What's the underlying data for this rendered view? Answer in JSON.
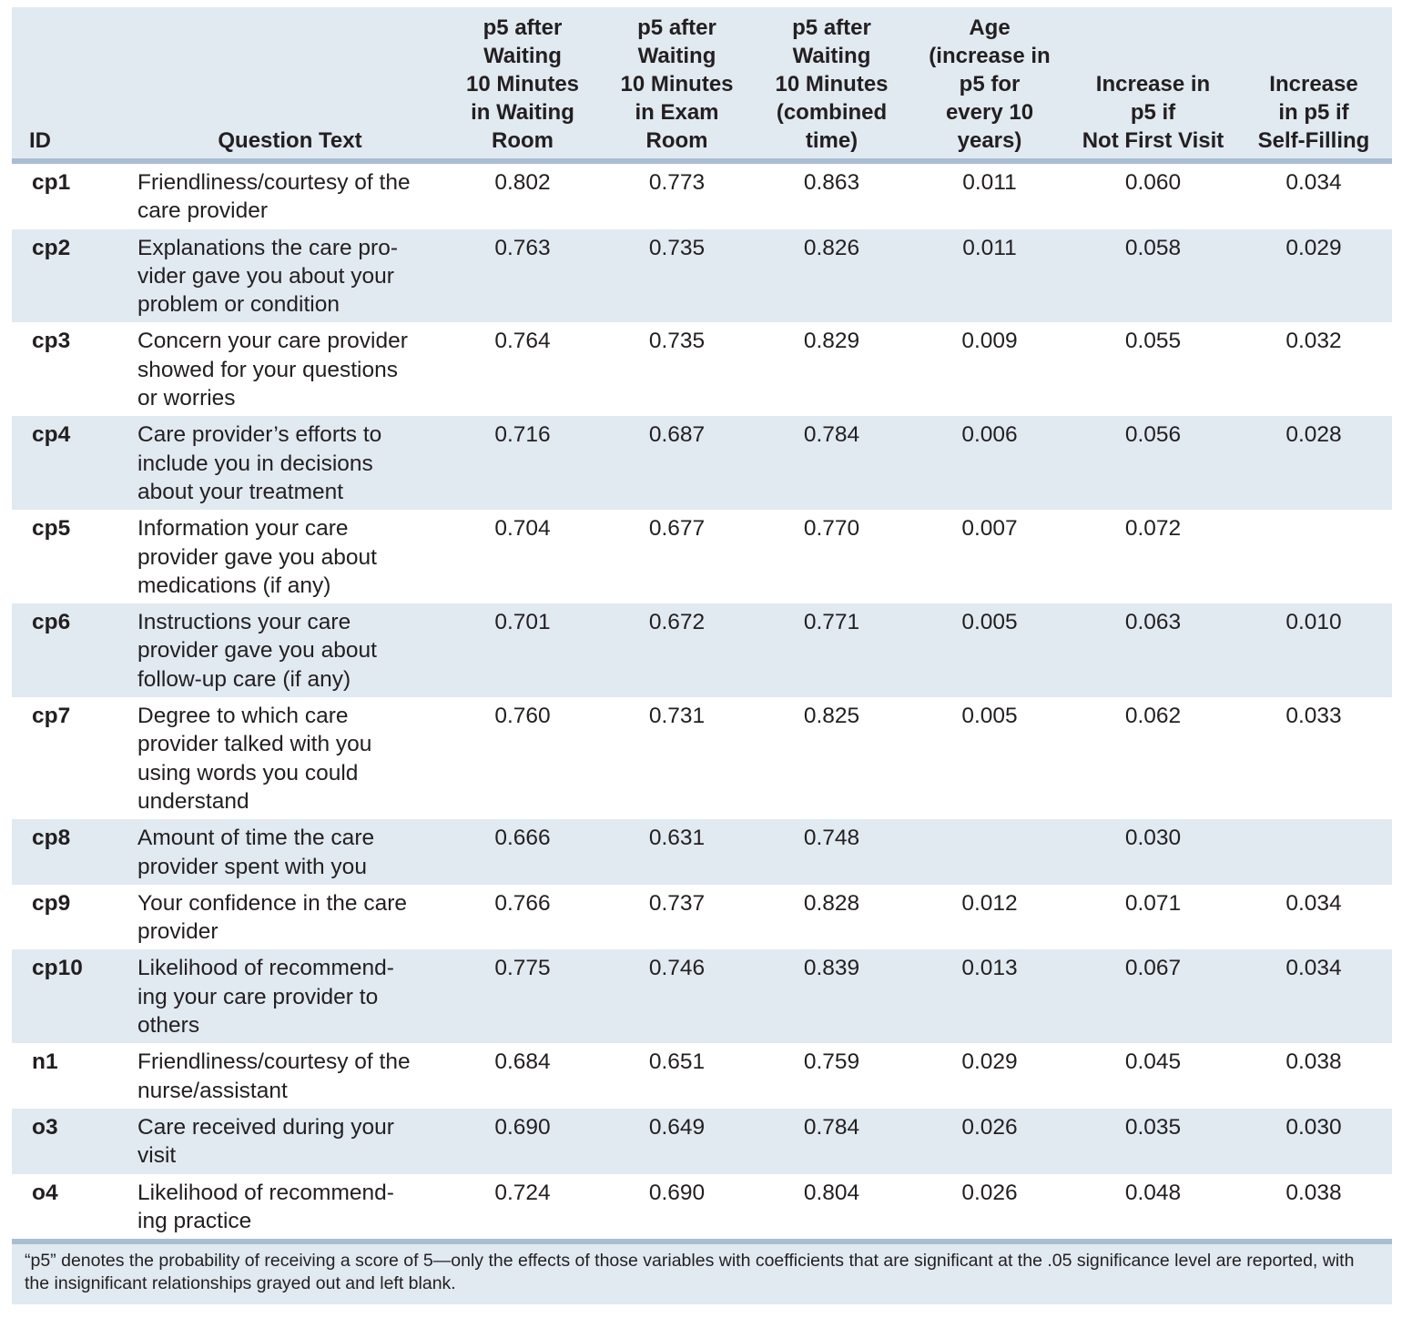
{
  "header": {
    "id": "ID",
    "question_text": "Question Text",
    "col1": [
      "p5 after",
      "Waiting",
      "10 Minutes",
      "in Waiting",
      "Room"
    ],
    "col2": [
      "p5 after",
      "Waiting",
      "10 Minutes",
      "in Exam",
      "Room"
    ],
    "col3": [
      "p5 after",
      "Waiting",
      "10 Minutes",
      "(combined",
      "time)"
    ],
    "col4": [
      "Age",
      "(increase in",
      "p5 for",
      "every 10",
      "years)"
    ],
    "col5": [
      "Increase in",
      "p5 if",
      "Not First Visit"
    ],
    "col6": [
      "Increase",
      "in p5 if",
      "Self-Filling"
    ]
  },
  "rows": [
    {
      "id": "cp1",
      "question": [
        "Friendliness/courtesy of the",
        "care provider"
      ],
      "waiting_room": "0.802",
      "exam_room": "0.773",
      "combined": "0.863",
      "age": "0.011",
      "not_first_visit": "0.060",
      "self_filling": "0.034"
    },
    {
      "id": "cp2",
      "question": [
        "Explanations the care pro-",
        "vider gave you about your",
        "problem or condition"
      ],
      "waiting_room": "0.763",
      "exam_room": "0.735",
      "combined": "0.826",
      "age": "0.011",
      "not_first_visit": "0.058",
      "self_filling": "0.029"
    },
    {
      "id": "cp3",
      "question": [
        "Concern your care provider",
        "showed for your questions",
        "or worries"
      ],
      "waiting_room": "0.764",
      "exam_room": "0.735",
      "combined": "0.829",
      "age": "0.009",
      "not_first_visit": "0.055",
      "self_filling": "0.032"
    },
    {
      "id": "cp4",
      "question": [
        "Care provider’s efforts to",
        "include you in decisions",
        "about your treatment"
      ],
      "waiting_room": "0.716",
      "exam_room": "0.687",
      "combined": "0.784",
      "age": "0.006",
      "not_first_visit": "0.056",
      "self_filling": "0.028"
    },
    {
      "id": "cp5",
      "question": [
        "Information your care",
        "provider gave you about",
        "medications (if any)"
      ],
      "waiting_room": "0.704",
      "exam_room": "0.677",
      "combined": "0.770",
      "age": "0.007",
      "not_first_visit": "0.072",
      "self_filling": ""
    },
    {
      "id": "cp6",
      "question": [
        "Instructions your care",
        "provider gave you about",
        "follow-up care (if any)"
      ],
      "waiting_room": "0.701",
      "exam_room": "0.672",
      "combined": "0.771",
      "age": "0.005",
      "not_first_visit": "0.063",
      "self_filling": "0.010"
    },
    {
      "id": "cp7",
      "question": [
        "Degree to which care",
        "provider talked with you",
        "using words you could",
        "understand"
      ],
      "waiting_room": "0.760",
      "exam_room": "0.731",
      "combined": "0.825",
      "age": "0.005",
      "not_first_visit": "0.062",
      "self_filling": "0.033"
    },
    {
      "id": "cp8",
      "question": [
        "Amount of time the care",
        "provider spent with you"
      ],
      "waiting_room": "0.666",
      "exam_room": "0.631",
      "combined": "0.748",
      "age": "",
      "not_first_visit": "0.030",
      "self_filling": ""
    },
    {
      "id": "cp9",
      "question": [
        "Your confidence in the care",
        "provider"
      ],
      "waiting_room": "0.766",
      "exam_room": "0.737",
      "combined": "0.828",
      "age": "0.012",
      "not_first_visit": "0.071",
      "self_filling": "0.034"
    },
    {
      "id": "cp10",
      "question": [
        "Likelihood of recommend-",
        "ing your care provider to",
        "others"
      ],
      "waiting_room": "0.775",
      "exam_room": "0.746",
      "combined": "0.839",
      "age": "0.013",
      "not_first_visit": "0.067",
      "self_filling": "0.034"
    },
    {
      "id": "n1",
      "question": [
        "Friendliness/courtesy of the",
        "nurse/assistant"
      ],
      "waiting_room": "0.684",
      "exam_room": "0.651",
      "combined": "0.759",
      "age": "0.029",
      "not_first_visit": "0.045",
      "self_filling": "0.038"
    },
    {
      "id": "o3",
      "question": [
        "Care received during your",
        "visit"
      ],
      "waiting_room": "0.690",
      "exam_room": "0.649",
      "combined": "0.784",
      "age": "0.026",
      "not_first_visit": "0.035",
      "self_filling": "0.030"
    },
    {
      "id": "o4",
      "question": [
        "Likelihood of recommend-",
        "ing practice"
      ],
      "waiting_room": "0.724",
      "exam_room": "0.690",
      "combined": "0.804",
      "age": "0.026",
      "not_first_visit": "0.048",
      "self_filling": "0.038"
    }
  ],
  "footnote": "“p5” denotes the probability of receiving a score of 5—only the effects of those variables with coefficients that are significant at the .05 significance level are reported, with the insignificant relationships grayed out and left blank.",
  "colors": {
    "band": "#e1e9f1",
    "rule": "#a9bdd3",
    "text": "#231f20"
  }
}
